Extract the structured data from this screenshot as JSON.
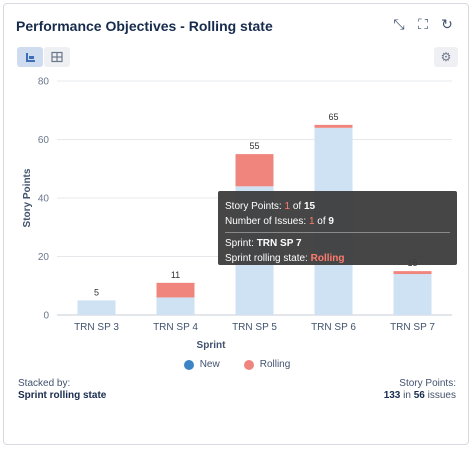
{
  "header": {
    "title": "Performance Objectives - Rolling state"
  },
  "icons": {
    "collapse": "collapse-icon",
    "fullscreen": "fullscreen-icon",
    "refresh": "refresh-icon",
    "settings": "gear-icon",
    "chart_view": "bar-chart-icon",
    "table_view": "table-icon"
  },
  "colors": {
    "new": "#cfe2f3",
    "rolling": "#f0857d",
    "legend_new": "#3d84c6",
    "legend_rolling": "#f0857d"
  },
  "chart_data": {
    "type": "bar",
    "stacked": true,
    "categories": [
      "TRN SP 3",
      "TRN SP 4",
      "TRN SP 5",
      "TRN SP 6",
      "TRN SP 7"
    ],
    "series": [
      {
        "name": "New",
        "values": [
          5,
          6,
          44,
          64,
          14
        ]
      },
      {
        "name": "Rolling",
        "values": [
          0,
          5,
          11,
          1,
          1
        ]
      }
    ],
    "totals": [
      "5",
      "11",
      "55",
      "65",
      "15"
    ],
    "ylim": [
      0,
      80
    ],
    "yticks": [
      "0",
      "20",
      "40",
      "60",
      "80"
    ],
    "xlabel": "Sprint",
    "ylabel": "Story Points",
    "grid": true,
    "legend_position": "bottom"
  },
  "legend": {
    "new_label": "New",
    "rolling_label": "Rolling"
  },
  "footer": {
    "stacked_by_label": "Stacked by:",
    "stacked_by_value": "Sprint rolling state",
    "story_points_label": "Story Points:",
    "story_points_value": "133",
    "in_text": "in",
    "issues_value": "56",
    "issues_text": "issues"
  },
  "tooltip": {
    "sp_label": "Story Points:",
    "sp_value": "1",
    "of_text": "of",
    "sp_total": "15",
    "issues_label": "Number of Issues:",
    "issues_value": "1",
    "issues_total": "9",
    "sprint_label": "Sprint:",
    "sprint_value": "TRN SP 7",
    "state_label": "Sprint rolling state:",
    "state_value": "Rolling"
  }
}
